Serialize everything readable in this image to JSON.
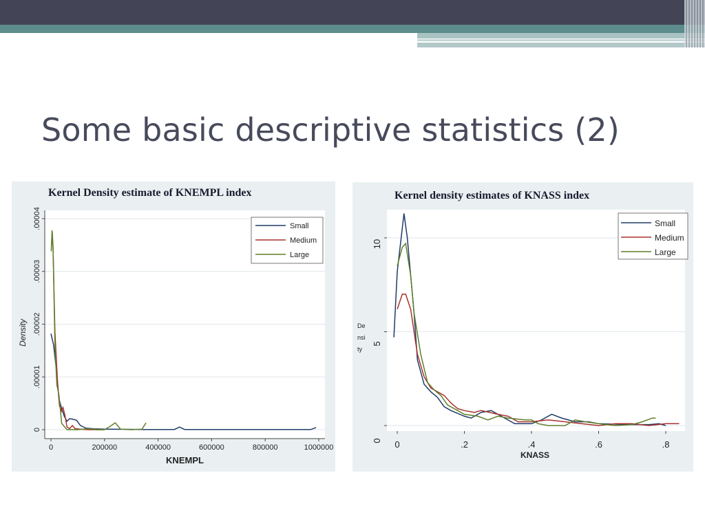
{
  "slide": {
    "title": "Some basic descriptive statistics (2)"
  },
  "colors": {
    "small": "#1f3b67",
    "medium": "#a8322d",
    "large": "#5e7f2a",
    "panel_bg": "#eaf0f2",
    "title": "#474a5b"
  },
  "chart_data": [
    {
      "type": "line",
      "title": "Kernel Density estimate of KNEMPL index",
      "xlabel": "KNEMPL",
      "ylabel": "Density",
      "xlim": [
        0,
        1000000
      ],
      "ylim": [
        0,
        4e-05
      ],
      "x_ticks": [
        0,
        200000,
        400000,
        600000,
        800000,
        1000000
      ],
      "x_tick_labels": [
        "0",
        "200000",
        "400000",
        "600000",
        "800000",
        "1000000"
      ],
      "y_ticks": [
        0,
        1e-05,
        2e-05,
        3e-05,
        4e-05
      ],
      "y_tick_labels": [
        "0",
        ".00001",
        ".00002",
        ".00003",
        ".00004"
      ],
      "grid": true,
      "legend": "top-right",
      "legend_entries": [
        "Small",
        "Medium",
        "Large"
      ],
      "series": [
        {
          "name": "Small",
          "points": [
            [
              0,
              1.82e-05
            ],
            [
              10000,
              1.6e-05
            ],
            [
              20000,
              1.15e-05
            ],
            [
              30000,
              5.8e-06
            ],
            [
              40000,
              4e-06
            ],
            [
              50000,
              2.5e-06
            ],
            [
              60000,
              1.6e-06
            ],
            [
              70000,
              2.1e-06
            ],
            [
              80000,
              2e-06
            ],
            [
              95000,
              1.8e-06
            ],
            [
              110000,
              8e-07
            ],
            [
              130000,
              3e-07
            ],
            [
              160000,
              1.5e-07
            ],
            [
              200000,
              1e-07
            ],
            [
              260000,
              8e-08
            ],
            [
              350000,
              3e-08
            ],
            [
              460000,
              3e-08
            ],
            [
              480000,
              5e-07
            ],
            [
              500000,
              3e-08
            ],
            [
              700000,
              2e-08
            ],
            [
              970000,
              2e-08
            ],
            [
              990000,
              4e-07
            ]
          ]
        },
        {
          "name": "Medium",
          "points": [
            [
              2000,
              3.48e-05
            ],
            [
              5000,
              3.75e-05
            ],
            [
              8000,
              3.4e-05
            ],
            [
              15000,
              1.85e-05
            ],
            [
              25000,
              8.8e-06
            ],
            [
              32000,
              4.5e-06
            ],
            [
              40000,
              3.5e-06
            ],
            [
              45000,
              4.2e-06
            ],
            [
              52000,
              2.8e-06
            ],
            [
              60000,
              5e-07
            ],
            [
              70000,
              2e-07
            ],
            [
              80000,
              8e-07
            ],
            [
              90000,
              2e-07
            ],
            [
              110000,
              1e-07
            ],
            [
              140000,
              0
            ],
            [
              200000,
              0
            ]
          ]
        },
        {
          "name": "Large",
          "points": [
            [
              1000,
              3.38e-05
            ],
            [
              4000,
              3.78e-05
            ],
            [
              8000,
              3.45e-05
            ],
            [
              15000,
              1.6e-05
            ],
            [
              22000,
              8.5e-06
            ],
            [
              30000,
              6.5e-06
            ],
            [
              40000,
              1.2e-06
            ],
            [
              60000,
              0
            ],
            [
              100000,
              0
            ],
            [
              140000,
              2e-07
            ],
            [
              170000,
              0
            ],
            [
              200000,
              0
            ],
            [
              220000,
              6e-07
            ],
            [
              240000,
              1.3e-06
            ],
            [
              260000,
              1e-07
            ],
            [
              300000,
              0
            ],
            [
              340000,
              1e-07
            ],
            [
              355000,
              1.3e-06
            ]
          ]
        }
      ]
    },
    {
      "type": "line",
      "title": "Kernel density estimates of KNASS index",
      "xlabel": "KNASS",
      "ylabel": "Density",
      "ylabel_shown": [
        "De",
        "nsi",
        "ty"
      ],
      "xlim": [
        0,
        0.85
      ],
      "ylim": [
        0,
        11.5
      ],
      "x_ticks": [
        0,
        0.2,
        0.4,
        0.6,
        0.8
      ],
      "x_tick_labels": [
        "0",
        ".2",
        ".4",
        ".6",
        ".8"
      ],
      "y_ticks": [
        0,
        5,
        10
      ],
      "y_tick_labels": [
        "0",
        "5",
        "10"
      ],
      "grid": true,
      "legend": "top-right",
      "legend_entries": [
        "Small",
        "Medium",
        "Large"
      ],
      "series": [
        {
          "name": "Small",
          "points": [
            [
              -0.01,
              4.7
            ],
            [
              0,
              8.2
            ],
            [
              0.02,
              11.3
            ],
            [
              0.03,
              10
            ],
            [
              0.05,
              6
            ],
            [
              0.06,
              3.5
            ],
            [
              0.08,
              2.2
            ],
            [
              0.1,
              1.8
            ],
            [
              0.12,
              1.5
            ],
            [
              0.14,
              1
            ],
            [
              0.16,
              0.8
            ],
            [
              0.2,
              0.5
            ],
            [
              0.22,
              0.4
            ],
            [
              0.25,
              0.7
            ],
            [
              0.28,
              0.8
            ],
            [
              0.3,
              0.6
            ],
            [
              0.35,
              0.1
            ],
            [
              0.4,
              0.1
            ],
            [
              0.43,
              0.3
            ],
            [
              0.46,
              0.6
            ],
            [
              0.49,
              0.4
            ],
            [
              0.53,
              0.2
            ],
            [
              0.57,
              0.2
            ],
            [
              0.6,
              0.1
            ],
            [
              0.7,
              0.05
            ],
            [
              0.75,
              0.05
            ],
            [
              0.78,
              0.1
            ],
            [
              0.8,
              0
            ]
          ]
        },
        {
          "name": "Medium",
          "points": [
            [
              0,
              6.2
            ],
            [
              0.015,
              7
            ],
            [
              0.025,
              7
            ],
            [
              0.04,
              6.2
            ],
            [
              0.05,
              5
            ],
            [
              0.06,
              3.8
            ],
            [
              0.08,
              2.6
            ],
            [
              0.1,
              2
            ],
            [
              0.12,
              1.8
            ],
            [
              0.14,
              1.6
            ],
            [
              0.16,
              1.2
            ],
            [
              0.18,
              0.9
            ],
            [
              0.2,
              0.8
            ],
            [
              0.23,
              0.7
            ],
            [
              0.25,
              0.8
            ],
            [
              0.3,
              0.6
            ],
            [
              0.33,
              0.5
            ],
            [
              0.36,
              0.2
            ],
            [
              0.4,
              0.2
            ],
            [
              0.45,
              0.3
            ],
            [
              0.5,
              0.2
            ],
            [
              0.55,
              0.1
            ],
            [
              0.6,
              0
            ],
            [
              0.65,
              0.1
            ],
            [
              0.7,
              0.1
            ],
            [
              0.75,
              0
            ],
            [
              0.8,
              0.1
            ],
            [
              0.84,
              0.1
            ]
          ]
        },
        {
          "name": "Large",
          "points": [
            [
              0,
              8.5
            ],
            [
              0.015,
              9.5
            ],
            [
              0.025,
              9.7
            ],
            [
              0.04,
              8
            ],
            [
              0.05,
              6
            ],
            [
              0.07,
              3.8
            ],
            [
              0.09,
              2.3
            ],
            [
              0.11,
              1.9
            ],
            [
              0.13,
              1.6
            ],
            [
              0.15,
              1.1
            ],
            [
              0.18,
              0.8
            ],
            [
              0.2,
              0.6
            ],
            [
              0.24,
              0.5
            ],
            [
              0.27,
              0.3
            ],
            [
              0.3,
              0.5
            ],
            [
              0.33,
              0.4
            ],
            [
              0.38,
              0.3
            ],
            [
              0.4,
              0.3
            ],
            [
              0.42,
              0.1
            ],
            [
              0.45,
              0
            ],
            [
              0.5,
              0
            ],
            [
              0.53,
              0.3
            ],
            [
              0.56,
              0.2
            ],
            [
              0.6,
              0.1
            ],
            [
              0.65,
              0
            ],
            [
              0.7,
              0.05
            ],
            [
              0.73,
              0.2
            ],
            [
              0.76,
              0.4
            ],
            [
              0.77,
              0.4
            ]
          ]
        }
      ]
    }
  ]
}
